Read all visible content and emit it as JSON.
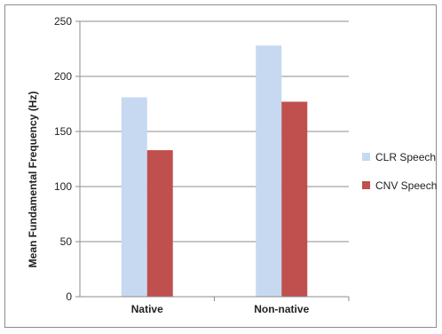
{
  "chart_data": {
    "type": "bar",
    "categories": [
      "Native",
      "Non-native"
    ],
    "series": [
      {
        "name": "CLR Speech",
        "values": [
          181,
          228
        ],
        "color": "#c6d9f1"
      },
      {
        "name": "CNV Speech",
        "values": [
          133,
          177
        ],
        "color": "#c0504d"
      }
    ],
    "ylabel": "Mean Fundamental Frequency (Hz)",
    "xlabel": "",
    "ylim": [
      0,
      250
    ],
    "yticks": [
      0,
      50,
      100,
      150,
      200,
      250
    ],
    "grid": true,
    "legend": "right"
  }
}
